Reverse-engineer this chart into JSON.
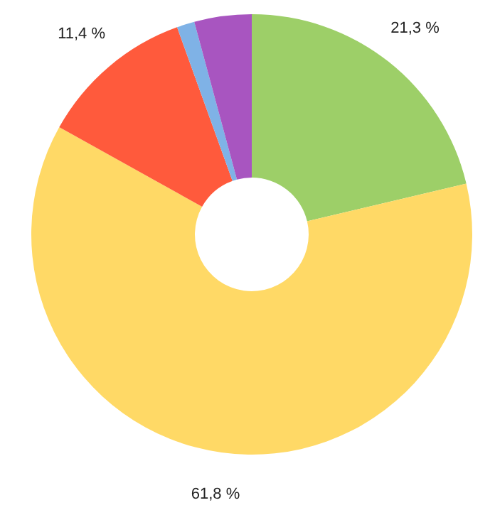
{
  "chart_data": {
    "type": "donut",
    "categories": [
      null,
      null,
      null,
      null,
      null
    ],
    "values": [
      21.3,
      61.8,
      11.4,
      1.3,
      4.2
    ],
    "colors": [
      "#9dcf68",
      "#ffd966",
      "#ff5a3c",
      "#7fb2e6",
      "#a855c0"
    ],
    "value_labels": [
      "21,3 %",
      "61,8 %",
      "11,4 %",
      null,
      null
    ]
  }
}
